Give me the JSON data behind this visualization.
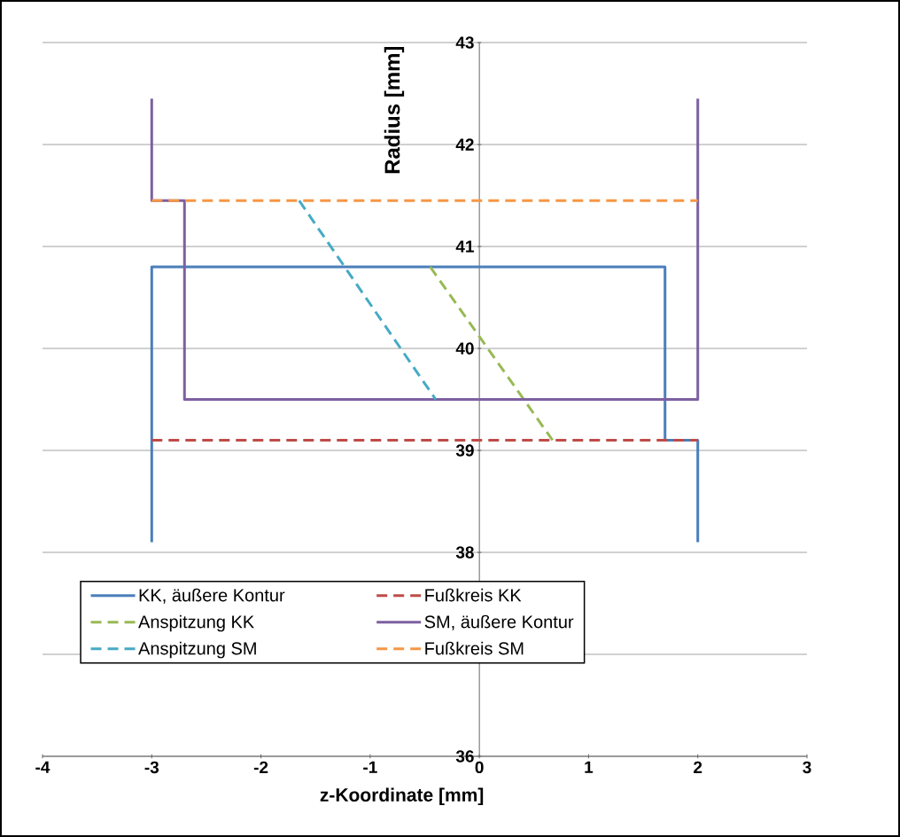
{
  "chart_data": {
    "type": "line",
    "xlabel": "z-Koordinate [mm]",
    "ylabel": "Radius [mm]",
    "xlim": [
      -4,
      3
    ],
    "ylim": [
      36,
      43
    ],
    "xticks": [
      -4,
      -3,
      -2,
      -1,
      0,
      1,
      2,
      3
    ],
    "yticks": [
      36,
      {
        "value": 37,
        "label": null
      },
      38,
      39,
      40,
      41,
      42,
      43
    ],
    "grid": "y",
    "legend": "bottom",
    "series": [
      {
        "name": "KK, äußere Kontur",
        "color": "#4a7ebb",
        "line_style": "solid",
        "x": [
          -3,
          -3,
          1.7,
          1.7,
          2,
          2
        ],
        "values": [
          38.1,
          40.8,
          40.8,
          39.1,
          39.1,
          38.1
        ]
      },
      {
        "name": "Fußkreis KK",
        "color": "#be4b48",
        "line_style": "dashed",
        "x": [
          -3,
          2
        ],
        "values": [
          39.1,
          39.1
        ]
      },
      {
        "name": "Anspitzung KK",
        "color": "#98b954",
        "line_style": "dashed",
        "x": [
          -0.45,
          0.67
        ],
        "values": [
          40.8,
          39.1
        ]
      },
      {
        "name": "SM, äußere Kontur",
        "color": "#7d60a0",
        "line_style": "solid",
        "x": [
          -3,
          -3,
          -2.7,
          -2.7,
          2,
          2
        ],
        "values": [
          42.45,
          41.45,
          41.45,
          39.5,
          39.5,
          42.45
        ]
      },
      {
        "name": "Anspitzung SM",
        "color": "#46aac5",
        "line_style": "dashed",
        "x": [
          -1.65,
          -0.4
        ],
        "values": [
          41.45,
          39.5
        ]
      },
      {
        "name": "Fußkreis SM",
        "color": "#f79646",
        "line_style": "dashed",
        "x": [
          -3,
          2
        ],
        "values": [
          41.45,
          41.45
        ]
      }
    ]
  }
}
